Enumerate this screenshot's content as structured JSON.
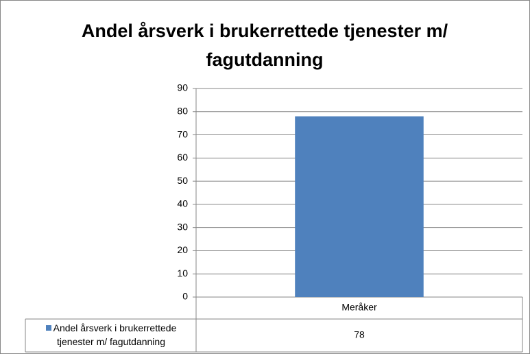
{
  "chart_data": {
    "type": "bar",
    "title": "Andel årsverk i brukerrettede tjenester m/ fagutdanning",
    "categories": [
      "Meråker"
    ],
    "series": [
      {
        "name": "Andel årsverk i brukerrettede tjenester m/ fagutdanning",
        "color": "#4f81bd",
        "values": [
          78
        ]
      }
    ],
    "ylim": [
      0,
      90
    ],
    "yticks": [
      0,
      10,
      20,
      30,
      40,
      50,
      60,
      70,
      80,
      90
    ],
    "grid": true
  }
}
